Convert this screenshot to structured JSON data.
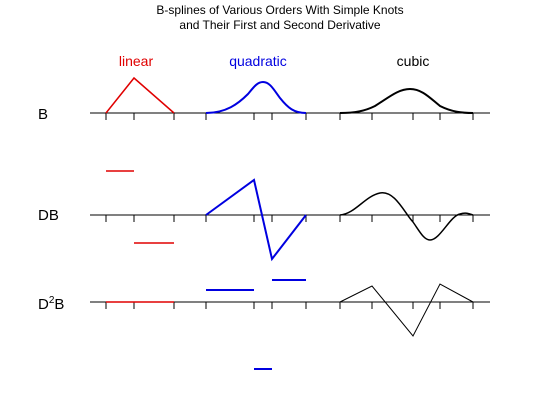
{
  "title": {
    "line1": "B-splines of Various Orders With Simple Knots",
    "line2": "and Their First and Second Derivative"
  },
  "columns": {
    "linear": {
      "label": "linear",
      "color": "#e00000"
    },
    "quadratic": {
      "label": "quadratic",
      "color": "#0000e0"
    },
    "cubic": {
      "label": "cubic",
      "color": "#000000"
    }
  },
  "rows": {
    "b": {
      "label": "B"
    },
    "db": {
      "label": "DB"
    },
    "d2b": {
      "base": "D",
      "sup": "2",
      "tail": "B"
    }
  }
}
